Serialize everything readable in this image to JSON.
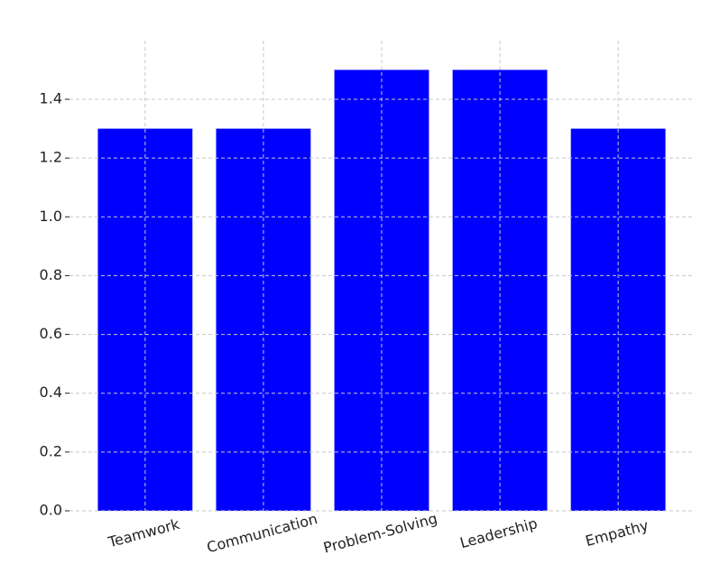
{
  "chart_data": {
    "type": "bar",
    "categories": [
      "Teamwork",
      "Communication",
      "Problem-Solving",
      "Leadership",
      "Empathy"
    ],
    "values": [
      1.3,
      1.3,
      1.5,
      1.5,
      1.3
    ],
    "color": "#0000ff",
    "ylim": [
      0,
      1.575
    ],
    "yticks": [
      {
        "value": 0,
        "label": "0.0"
      },
      0.2,
      0.4,
      0.6,
      0.8,
      {
        "value": 1,
        "label": "1.0"
      },
      1.2,
      1.4
    ],
    "grid": true
  }
}
